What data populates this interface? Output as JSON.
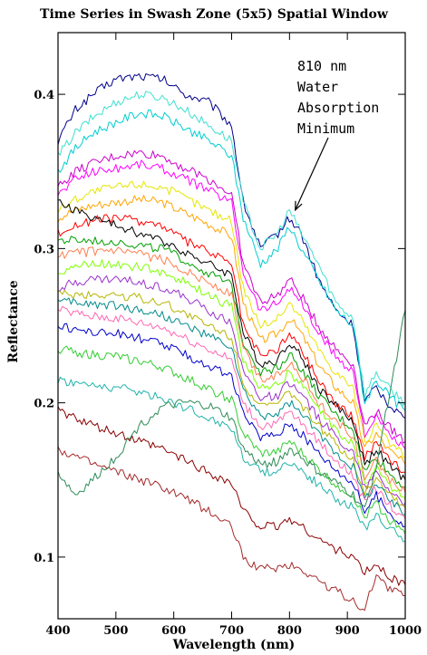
{
  "chart_data": {
    "type": "line",
    "title": "Time Series in Swash Zone (5x5) Spatial Window",
    "xlabel": "Wavelength (nm)",
    "ylabel": "Reflectance",
    "xlim": [
      400,
      1000
    ],
    "ylim": [
      0.06,
      0.44
    ],
    "xticks": [
      "400",
      "500",
      "600",
      "700",
      "800",
      "900",
      "1000"
    ],
    "xtick_values": [
      400,
      500,
      600,
      700,
      800,
      900,
      1000
    ],
    "yticks": [
      "0.1",
      "0.2",
      "0.3",
      "0.4"
    ],
    "ytick_values": [
      0.1,
      0.2,
      0.3,
      0.4
    ],
    "annotation": {
      "lines": [
        "810 nm",
        "Water",
        "Absorption",
        "Minimum"
      ],
      "points_to": [
        810,
        0.325
      ]
    },
    "grid": false,
    "legend": "none",
    "series": [
      {
        "color": "#00008b",
        "x": [
          400,
          430,
          460,
          500,
          540,
          580,
          620,
          660,
          700,
          720,
          750,
          780,
          800,
          820,
          850,
          880,
          910,
          930,
          950,
          970,
          1000
        ],
        "y": [
          0.37,
          0.39,
          0.4,
          0.41,
          0.412,
          0.41,
          0.4,
          0.395,
          0.38,
          0.33,
          0.3,
          0.31,
          0.32,
          0.31,
          0.28,
          0.26,
          0.25,
          0.2,
          0.21,
          0.2,
          0.19
        ]
      },
      {
        "color": "#40e0d0",
        "x": [
          400,
          430,
          460,
          500,
          540,
          580,
          620,
          660,
          700,
          720,
          750,
          780,
          800,
          820,
          850,
          880,
          910,
          930,
          950,
          970,
          1000
        ],
        "y": [
          0.36,
          0.375,
          0.385,
          0.395,
          0.4,
          0.398,
          0.39,
          0.38,
          0.37,
          0.33,
          0.3,
          0.31,
          0.325,
          0.31,
          0.29,
          0.265,
          0.255,
          0.205,
          0.22,
          0.21,
          0.2
        ]
      },
      {
        "color": "#00ced1",
        "x": [
          400,
          430,
          460,
          500,
          540,
          580,
          620,
          660,
          700,
          720,
          750,
          780,
          800,
          820,
          850,
          880,
          910,
          930,
          950,
          970,
          1000
        ],
        "y": [
          0.35,
          0.365,
          0.375,
          0.382,
          0.388,
          0.386,
          0.378,
          0.37,
          0.36,
          0.32,
          0.29,
          0.3,
          0.315,
          0.3,
          0.28,
          0.26,
          0.25,
          0.2,
          0.215,
          0.205,
          0.195
        ]
      },
      {
        "color": "#cc00cc",
        "x": [
          400,
          430,
          460,
          500,
          540,
          580,
          620,
          660,
          700,
          720,
          750,
          780,
          800,
          820,
          850,
          880,
          910,
          930,
          950,
          970,
          1000
        ],
        "y": [
          0.34,
          0.35,
          0.355,
          0.36,
          0.362,
          0.36,
          0.352,
          0.345,
          0.335,
          0.29,
          0.265,
          0.27,
          0.28,
          0.27,
          0.25,
          0.235,
          0.225,
          0.185,
          0.195,
          0.185,
          0.175
        ]
      },
      {
        "color": "#ff00ff",
        "x": [
          400,
          430,
          460,
          500,
          540,
          580,
          620,
          660,
          700,
          720,
          750,
          780,
          800,
          820,
          850,
          880,
          910,
          930,
          950,
          970,
          1000
        ],
        "y": [
          0.335,
          0.345,
          0.35,
          0.352,
          0.355,
          0.352,
          0.345,
          0.338,
          0.33,
          0.285,
          0.26,
          0.265,
          0.275,
          0.265,
          0.245,
          0.23,
          0.22,
          0.18,
          0.19,
          0.18,
          0.17
        ]
      },
      {
        "color": "#e6e600",
        "x": [
          400,
          430,
          460,
          500,
          540,
          580,
          620,
          660,
          700,
          720,
          750,
          780,
          800,
          820,
          850,
          880,
          910,
          930,
          950,
          970,
          1000
        ],
        "y": [
          0.325,
          0.332,
          0.337,
          0.34,
          0.342,
          0.34,
          0.333,
          0.325,
          0.318,
          0.275,
          0.25,
          0.255,
          0.265,
          0.255,
          0.235,
          0.22,
          0.21,
          0.175,
          0.185,
          0.175,
          0.165
        ]
      },
      {
        "color": "#ffa500",
        "x": [
          400,
          430,
          460,
          500,
          540,
          580,
          620,
          660,
          700,
          720,
          750,
          780,
          800,
          820,
          850,
          880,
          910,
          930,
          950,
          970,
          1000
        ],
        "y": [
          0.32,
          0.325,
          0.328,
          0.33,
          0.332,
          0.33,
          0.323,
          0.316,
          0.308,
          0.265,
          0.24,
          0.245,
          0.255,
          0.245,
          0.225,
          0.21,
          0.2,
          0.17,
          0.18,
          0.17,
          0.16
        ]
      },
      {
        "color": "#ff0000",
        "x": [
          400,
          430,
          460,
          500,
          540,
          580,
          620,
          660,
          700,
          720,
          750,
          780,
          800,
          820,
          850,
          880,
          910,
          930,
          950,
          970,
          1000
        ],
        "y": [
          0.31,
          0.315,
          0.318,
          0.32,
          0.318,
          0.315,
          0.305,
          0.298,
          0.29,
          0.25,
          0.23,
          0.235,
          0.245,
          0.235,
          0.215,
          0.2,
          0.19,
          0.165,
          0.175,
          0.165,
          0.155
        ]
      },
      {
        "color": "#000000",
        "x": [
          400,
          430,
          460,
          500,
          540,
          580,
          620,
          660,
          700,
          720,
          750,
          780,
          800,
          820,
          850,
          880,
          910,
          930,
          950,
          970,
          1000
        ],
        "y": [
          0.33,
          0.325,
          0.32,
          0.315,
          0.31,
          0.305,
          0.298,
          0.29,
          0.283,
          0.245,
          0.225,
          0.228,
          0.24,
          0.23,
          0.21,
          0.198,
          0.188,
          0.16,
          0.17,
          0.16,
          0.15
        ]
      },
      {
        "color": "#00a000",
        "x": [
          400,
          430,
          460,
          500,
          540,
          580,
          620,
          660,
          700,
          720,
          750,
          780,
          800,
          820,
          850,
          880,
          910,
          930,
          950,
          970,
          1000
        ],
        "y": [
          0.305,
          0.305,
          0.305,
          0.305,
          0.302,
          0.3,
          0.292,
          0.284,
          0.276,
          0.24,
          0.22,
          0.223,
          0.232,
          0.222,
          0.205,
          0.192,
          0.183,
          0.155,
          0.165,
          0.155,
          0.145
        ]
      },
      {
        "color": "#ff7f50",
        "x": [
          400,
          430,
          460,
          500,
          540,
          580,
          620,
          660,
          700,
          720,
          750,
          780,
          800,
          820,
          850,
          880,
          910,
          930,
          950,
          970,
          1000
        ],
        "y": [
          0.295,
          0.297,
          0.298,
          0.298,
          0.296,
          0.293,
          0.286,
          0.278,
          0.27,
          0.235,
          0.215,
          0.218,
          0.227,
          0.218,
          0.2,
          0.188,
          0.178,
          0.152,
          0.162,
          0.152,
          0.142
        ]
      },
      {
        "color": "#7fff00",
        "x": [
          400,
          430,
          460,
          500,
          540,
          580,
          620,
          660,
          700,
          720,
          750,
          780,
          800,
          820,
          850,
          880,
          910,
          930,
          950,
          970,
          1000
        ],
        "y": [
          0.285,
          0.288,
          0.29,
          0.29,
          0.288,
          0.285,
          0.278,
          0.27,
          0.262,
          0.228,
          0.21,
          0.212,
          0.22,
          0.212,
          0.195,
          0.183,
          0.173,
          0.148,
          0.158,
          0.148,
          0.138
        ]
      },
      {
        "color": "#9932cc",
        "x": [
          400,
          430,
          460,
          500,
          540,
          580,
          620,
          660,
          700,
          720,
          750,
          780,
          800,
          820,
          850,
          880,
          910,
          930,
          950,
          970,
          1000
        ],
        "y": [
          0.275,
          0.278,
          0.28,
          0.28,
          0.278,
          0.275,
          0.268,
          0.26,
          0.252,
          0.22,
          0.203,
          0.205,
          0.213,
          0.205,
          0.19,
          0.178,
          0.168,
          0.145,
          0.155,
          0.145,
          0.135
        ]
      },
      {
        "color": "#b4b400",
        "x": [
          400,
          430,
          460,
          500,
          540,
          580,
          620,
          660,
          700,
          720,
          750,
          780,
          800,
          820,
          850,
          880,
          910,
          930,
          950,
          970,
          1000
        ],
        "y": [
          0.27,
          0.27,
          0.27,
          0.27,
          0.268,
          0.265,
          0.258,
          0.25,
          0.243,
          0.213,
          0.197,
          0.199,
          0.207,
          0.199,
          0.185,
          0.173,
          0.163,
          0.142,
          0.152,
          0.142,
          0.132
        ]
      },
      {
        "color": "#008b8b",
        "x": [
          400,
          430,
          460,
          500,
          540,
          580,
          620,
          660,
          700,
          720,
          750,
          780,
          800,
          820,
          850,
          880,
          910,
          930,
          950,
          970,
          1000
        ],
        "y": [
          0.265,
          0.265,
          0.264,
          0.263,
          0.26,
          0.257,
          0.25,
          0.243,
          0.236,
          0.207,
          0.191,
          0.193,
          0.2,
          0.193,
          0.18,
          0.168,
          0.158,
          0.138,
          0.148,
          0.138,
          0.128
        ]
      },
      {
        "color": "#ff69b4",
        "x": [
          400,
          430,
          460,
          500,
          540,
          580,
          620,
          660,
          700,
          720,
          750,
          780,
          800,
          820,
          850,
          880,
          910,
          930,
          950,
          970,
          1000
        ],
        "y": [
          0.26,
          0.258,
          0.256,
          0.255,
          0.252,
          0.249,
          0.242,
          0.235,
          0.228,
          0.2,
          0.185,
          0.187,
          0.194,
          0.187,
          0.175,
          0.163,
          0.153,
          0.135,
          0.145,
          0.135,
          0.125
        ]
      },
      {
        "color": "#0000cd",
        "x": [
          400,
          430,
          460,
          500,
          540,
          580,
          620,
          660,
          700,
          720,
          750,
          780,
          800,
          820,
          850,
          880,
          910,
          930,
          950,
          970,
          1000
        ],
        "y": [
          0.25,
          0.248,
          0.246,
          0.245,
          0.242,
          0.238,
          0.231,
          0.224,
          0.217,
          0.192,
          0.178,
          0.18,
          0.187,
          0.18,
          0.168,
          0.157,
          0.148,
          0.13,
          0.14,
          0.13,
          0.12
        ]
      },
      {
        "color": "#32cd32",
        "x": [
          400,
          430,
          460,
          500,
          540,
          580,
          620,
          660,
          700,
          720,
          750,
          780,
          800,
          820,
          850,
          880,
          910,
          930,
          950,
          970,
          1000
        ],
        "y": [
          0.235,
          0.233,
          0.231,
          0.23,
          0.227,
          0.223,
          0.216,
          0.209,
          0.202,
          0.18,
          0.167,
          0.168,
          0.175,
          0.168,
          0.157,
          0.147,
          0.14,
          0.125,
          0.135,
          0.125,
          0.115
        ]
      },
      {
        "color": "#20b2aa",
        "x": [
          400,
          430,
          460,
          500,
          540,
          580,
          620,
          660,
          700,
          720,
          750,
          780,
          800,
          820,
          850,
          880,
          910,
          930,
          950,
          970,
          1000
        ],
        "y": [
          0.215,
          0.213,
          0.211,
          0.21,
          0.207,
          0.203,
          0.197,
          0.19,
          0.184,
          0.165,
          0.155,
          0.156,
          0.162,
          0.156,
          0.147,
          0.138,
          0.132,
          0.118,
          0.128,
          0.12,
          0.11
        ]
      },
      {
        "color": "#8b0000",
        "x": [
          400,
          430,
          460,
          500,
          540,
          580,
          620,
          660,
          700,
          720,
          750,
          780,
          800,
          820,
          850,
          880,
          910,
          930,
          950,
          970,
          1000
        ],
        "y": [
          0.195,
          0.19,
          0.185,
          0.18,
          0.175,
          0.17,
          0.163,
          0.155,
          0.148,
          0.13,
          0.12,
          0.12,
          0.125,
          0.12,
          0.112,
          0.105,
          0.1,
          0.09,
          0.095,
          0.088,
          0.082
        ]
      },
      {
        "color": "#a52a2a",
        "x": [
          400,
          430,
          460,
          500,
          540,
          580,
          620,
          660,
          700,
          720,
          750,
          780,
          800,
          820,
          850,
          880,
          910,
          930,
          950,
          970,
          1000
        ],
        "y": [
          0.17,
          0.165,
          0.16,
          0.155,
          0.15,
          0.145,
          0.138,
          0.13,
          0.12,
          0.1,
          0.092,
          0.093,
          0.095,
          0.092,
          0.085,
          0.078,
          0.072,
          0.065,
          0.09,
          0.08,
          0.075
        ]
      },
      {
        "color": "#2e8b57",
        "x": [
          400,
          430,
          460,
          500,
          540,
          580,
          620,
          660,
          700,
          720,
          750,
          780,
          800,
          820,
          850,
          880,
          910,
          930,
          950,
          970,
          1000
        ],
        "y": [
          0.155,
          0.14,
          0.15,
          0.165,
          0.185,
          0.197,
          0.2,
          0.198,
          0.19,
          0.17,
          0.16,
          0.162,
          0.17,
          0.165,
          0.155,
          0.148,
          0.14,
          0.13,
          0.16,
          0.2,
          0.26
        ]
      }
    ]
  }
}
